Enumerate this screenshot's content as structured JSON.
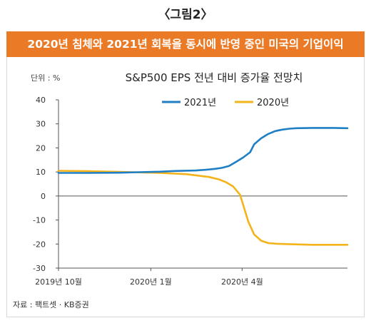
{
  "figure_label": "〈그림2〉",
  "banner_title": "2020년 침체와 2021년 회복을 동시에 반영 중인 미국의 기업이익",
  "source": "자료 : 팩트셋 · KB증권",
  "chart_data": {
    "type": "line",
    "title": "S&P500 EPS 전년 대비 증가율 전망치",
    "unit_label": "단위 : %",
    "ylim": [
      -30,
      40
    ],
    "yticks": [
      40,
      30,
      20,
      10,
      0,
      -10,
      -20,
      -30
    ],
    "ytick_labels": [
      "40",
      "30",
      "20",
      "10",
      "0",
      "-10",
      "-20",
      "-30"
    ],
    "xlim": [
      "2019-10-01",
      "2020-07-15"
    ],
    "xticks": [
      {
        "date": "2019-10-01",
        "label": "2019년 10월"
      },
      {
        "date": "2020-01-01",
        "label": "2020년 1월"
      },
      {
        "date": "2020-04-01",
        "label": "2020년 4월"
      }
    ],
    "legend_position": "top-center",
    "grid": false,
    "series": [
      {
        "name": "2021년",
        "color": "#1f7fc4",
        "points": [
          [
            "2019-10-01",
            9.6
          ],
          [
            "2019-11-01",
            9.6
          ],
          [
            "2019-12-01",
            9.7
          ],
          [
            "2019-12-20",
            9.9
          ],
          [
            "2020-01-10",
            10.1
          ],
          [
            "2020-01-25",
            10.4
          ],
          [
            "2020-02-15",
            10.6
          ],
          [
            "2020-02-25",
            10.9
          ],
          [
            "2020-03-05",
            11.3
          ],
          [
            "2020-03-12",
            11.7
          ],
          [
            "2020-03-19",
            12.5
          ],
          [
            "2020-03-26",
            14.2
          ],
          [
            "2020-04-02",
            16.0
          ],
          [
            "2020-04-09",
            18.2
          ],
          [
            "2020-04-13",
            21.5
          ],
          [
            "2020-04-20",
            24.0
          ],
          [
            "2020-04-27",
            25.8
          ],
          [
            "2020-05-04",
            27.0
          ],
          [
            "2020-05-11",
            27.6
          ],
          [
            "2020-05-18",
            28.0
          ],
          [
            "2020-05-25",
            28.2
          ],
          [
            "2020-06-10",
            28.3
          ],
          [
            "2020-07-01",
            28.3
          ],
          [
            "2020-07-15",
            28.2
          ]
        ]
      },
      {
        "name": "2020년",
        "color": "#f3b319",
        "points": [
          [
            "2019-10-01",
            10.5
          ],
          [
            "2019-11-01",
            10.3
          ],
          [
            "2019-12-01",
            10.0
          ],
          [
            "2020-01-10",
            9.6
          ],
          [
            "2020-01-25",
            9.3
          ],
          [
            "2020-02-05",
            9.1
          ],
          [
            "2020-02-15",
            8.6
          ],
          [
            "2020-02-28",
            7.9
          ],
          [
            "2020-03-09",
            6.9
          ],
          [
            "2020-03-16",
            5.7
          ],
          [
            "2020-03-23",
            4.0
          ],
          [
            "2020-03-30",
            0.5
          ],
          [
            "2020-04-03",
            -5.0
          ],
          [
            "2020-04-07",
            -10.5
          ],
          [
            "2020-04-13",
            -16.0
          ],
          [
            "2020-04-20",
            -18.6
          ],
          [
            "2020-04-27",
            -19.6
          ],
          [
            "2020-05-06",
            -19.9
          ],
          [
            "2020-05-20",
            -20.1
          ],
          [
            "2020-06-10",
            -20.3
          ],
          [
            "2020-07-15",
            -20.3
          ]
        ]
      }
    ]
  }
}
